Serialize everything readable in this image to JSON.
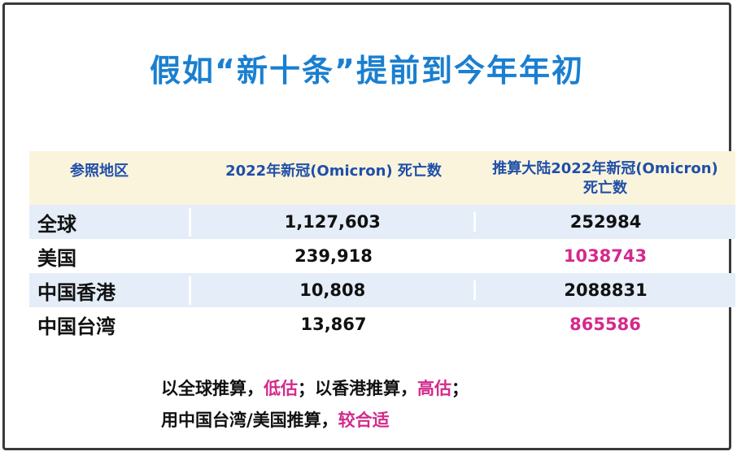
{
  "title": "假如“新十条”提前到今年年初",
  "table": {
    "headers": {
      "region": "参照地区",
      "deaths": "2022年新冠(Omicron) 死亡数",
      "estimate_line1": "推算大陆2022年新冠(Omicron)",
      "estimate_line2": "死亡数"
    },
    "rows": [
      {
        "region": "全球",
        "deaths": "1,127,603",
        "estimate": "252984"
      },
      {
        "region": "美国",
        "deaths": "239,918",
        "estimate": "1038743"
      },
      {
        "region": "中国香港",
        "deaths": "10,808",
        "estimate": "2088831"
      },
      {
        "region": "中国台湾",
        "deaths": "13,867",
        "estimate": "865586"
      }
    ]
  },
  "notes": {
    "line1": [
      {
        "text": "以全球推算，",
        "highlight": false
      },
      {
        "text": "低估",
        "highlight": true
      },
      {
        "text": "；以香港推算，",
        "highlight": false
      },
      {
        "text": "高估",
        "highlight": true
      },
      {
        "text": "；",
        "highlight": false
      }
    ],
    "line2": [
      {
        "text": "用中国台湾/美国推算，",
        "highlight": false
      },
      {
        "text": "较合适",
        "highlight": true
      }
    ]
  },
  "colors": {
    "title": "#1a7fd0",
    "header_text": "#1f4fa8",
    "header_bg": "#fbf4dd",
    "row_shade": "#e4edf8",
    "highlight": "#d42a8c"
  }
}
